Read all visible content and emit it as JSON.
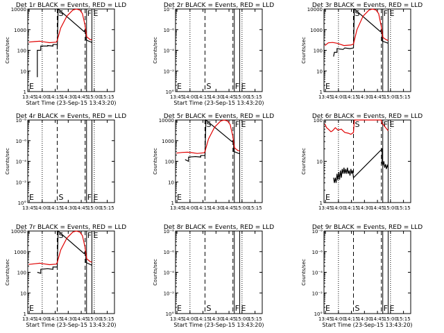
{
  "colors": {
    "events": "#000000",
    "lld": "#e00000",
    "axes": "#000000"
  },
  "chart_data": [
    {
      "type": "line",
      "title": "Det 1r BLACK = Events, RED = LLD",
      "xlabel": "Start Time (23-Sep-15 13:43:20)",
      "ylabel": "Counts/sec",
      "x_ticks": [
        "13:45",
        "14:00",
        "14:15",
        "14:30",
        "14:45",
        "15:00",
        "15:15"
      ],
      "y_ticks": [
        "1",
        "10",
        "100",
        "1000",
        "10000"
      ],
      "ylim": [
        1,
        10000
      ],
      "yscale": "log",
      "markers": [
        {
          "label": "E",
          "x_min": 0
        },
        {
          "label": "S",
          "x_min": 34
        },
        {
          "label": "F",
          "x_min": 67
        },
        {
          "label": "E",
          "x_min": 74
        }
      ],
      "series": [
        {
          "name": "BLACK",
          "color": "#000000",
          "points": [
            [
              11,
              5
            ],
            [
              11,
              100
            ],
            [
              15,
              100
            ],
            [
              15,
              160
            ],
            [
              23,
              160
            ],
            [
              23,
              170
            ],
            [
              29,
              160
            ],
            [
              29,
              190
            ],
            [
              34,
              190
            ],
            [
              34,
              110
            ],
            [
              35,
              10000
            ],
            [
              65,
              800
            ],
            [
              66,
              1000
            ],
            [
              67,
              600
            ],
            [
              67,
              320
            ],
            [
              74,
              240
            ],
            [
              74,
              230
            ]
          ]
        },
        {
          "name": "RED",
          "color": "#e00000",
          "points": [
            [
              1,
              250
            ],
            [
              8,
              265
            ],
            [
              14,
              275
            ],
            [
              18,
              260
            ],
            [
              25,
              235
            ],
            [
              33,
              250
            ],
            [
              34,
              300
            ],
            [
              38,
              1200
            ],
            [
              45,
              4500
            ],
            [
              52,
              9000
            ],
            [
              56,
              10000
            ],
            [
              60,
              9000
            ],
            [
              63,
              6000
            ],
            [
              66,
              1700
            ],
            [
              68,
              450
            ],
            [
              72,
              330
            ],
            [
              74,
              330
            ]
          ]
        }
      ]
    },
    {
      "type": "line",
      "title": "Det 2r BLACK = Events, RED = LLD",
      "xlabel": "Start Time (23-Sep-15 13:43:20)",
      "ylabel": "Counts/sec",
      "x_ticks": [
        "13:45",
        "14:00",
        "14:15",
        "14:30",
        "14:45",
        "15:00",
        "15:15"
      ],
      "y_ticks": [
        "10°",
        "10⁻²",
        "10⁻⁴",
        "10⁻⁶",
        "10⁻⁸"
      ],
      "ylim": [
        1,
        1e-08
      ],
      "yscale": "log",
      "markers": [
        {
          "label": "E",
          "x_min": 0
        },
        {
          "label": "S",
          "x_min": 34
        },
        {
          "label": "F",
          "x_min": 67
        },
        {
          "label": "E",
          "x_min": 74
        }
      ],
      "series": []
    },
    {
      "type": "line",
      "title": "Det 3r BLACK = Events, RED = LLD",
      "xlabel": "",
      "ylabel": "Counts/sec",
      "x_ticks": [
        "13:45",
        "14:00",
        "14:15",
        "14:30",
        "14:45",
        "15:00",
        "15:15"
      ],
      "y_ticks": [
        "1",
        "10",
        "100",
        "1000",
        "10000"
      ],
      "ylim": [
        1,
        10000
      ],
      "yscale": "log",
      "markers": [
        {
          "label": "E",
          "x_min": 0
        },
        {
          "label": "S",
          "x_min": 34
        },
        {
          "label": "F",
          "x_min": 67
        },
        {
          "label": "E",
          "x_min": 74
        }
      ],
      "series": [
        {
          "name": "BLACK",
          "color": "#000000",
          "points": [
            [
              11,
              50
            ],
            [
              12,
              80
            ],
            [
              15,
              80
            ],
            [
              15,
              120
            ],
            [
              22,
              110
            ],
            [
              24,
              130
            ],
            [
              30,
              120
            ],
            [
              34,
              130
            ],
            [
              35,
              10000
            ],
            [
              65,
              800
            ],
            [
              66,
              1000
            ],
            [
              67,
              600
            ],
            [
              67,
              280
            ],
            [
              74,
              220
            ]
          ]
        },
        {
          "name": "RED",
          "color": "#e00000",
          "points": [
            [
              1,
              170
            ],
            [
              5,
              230
            ],
            [
              10,
              240
            ],
            [
              15,
              220
            ],
            [
              23,
              170
            ],
            [
              31,
              180
            ],
            [
              34,
              200
            ],
            [
              38,
              1000
            ],
            [
              45,
              4500
            ],
            [
              52,
              9000
            ],
            [
              56,
              10000
            ],
            [
              60,
              9000
            ],
            [
              63,
              6000
            ],
            [
              66,
              1500
            ],
            [
              68,
              420
            ],
            [
              72,
              320
            ],
            [
              74,
              300
            ]
          ]
        }
      ]
    },
    {
      "type": "line",
      "title": "Det 4r BLACK = Events, RED = LLD",
      "xlabel": "",
      "ylabel": "Counts/sec",
      "x_ticks": [
        "13:45",
        "14:00",
        "14:15",
        "14:30",
        "14:45",
        "15:00",
        "15:15"
      ],
      "y_ticks": [
        "10°",
        "10⁻²",
        "10⁻⁴",
        "10⁻⁶",
        "10⁻⁸"
      ],
      "ylim": [
        1,
        1e-08
      ],
      "yscale": "log",
      "markers": [
        {
          "label": "E",
          "x_min": 0
        },
        {
          "label": "S",
          "x_min": 34
        },
        {
          "label": "F",
          "x_min": 67
        },
        {
          "label": "E",
          "x_min": 74
        }
      ],
      "series": []
    },
    {
      "type": "line",
      "title": "Det 5r BLACK = Events, RED = LLD",
      "xlabel": "",
      "ylabel": "Counts/sec",
      "x_ticks": [
        "13:45",
        "14:00",
        "14:15",
        "14:30",
        "14:45",
        "15:00",
        "15:15"
      ],
      "y_ticks": [
        "1",
        "10",
        "100",
        "1000",
        "10000"
      ],
      "ylim": [
        1,
        10000
      ],
      "yscale": "log",
      "markers": [
        {
          "label": "E",
          "x_min": 0
        },
        {
          "label": "S",
          "x_min": 34
        },
        {
          "label": "F",
          "x_min": 67
        },
        {
          "label": "E",
          "x_min": 74
        }
      ],
      "series": [
        {
          "name": "BLACK",
          "color": "#000000",
          "points": [
            [
              11,
              120
            ],
            [
              15,
              100
            ],
            [
              15,
              160
            ],
            [
              23,
              170
            ],
            [
              29,
              160
            ],
            [
              29,
              190
            ],
            [
              34,
              190
            ],
            [
              35,
              10000
            ],
            [
              65,
              900
            ],
            [
              66,
              1000
            ],
            [
              67,
              600
            ],
            [
              67,
              300
            ],
            [
              74,
              230
            ]
          ]
        },
        {
          "name": "RED",
          "color": "#e00000",
          "points": [
            [
              1,
              250
            ],
            [
              8,
              270
            ],
            [
              14,
              275
            ],
            [
              18,
              265
            ],
            [
              25,
              240
            ],
            [
              33,
              260
            ],
            [
              34,
              300
            ],
            [
              38,
              1200
            ],
            [
              45,
              4500
            ],
            [
              52,
              9000
            ],
            [
              56,
              10000
            ],
            [
              60,
              9000
            ],
            [
              63,
              6000
            ],
            [
              66,
              1700
            ],
            [
              68,
              450
            ],
            [
              72,
              330
            ],
            [
              74,
              320
            ]
          ]
        }
      ]
    },
    {
      "type": "line",
      "title": "Det 6r BLACK = Events, RED = LLD",
      "xlabel": "",
      "ylabel": "Counts/sec",
      "x_ticks": [
        "13:45",
        "14:00",
        "14:15",
        "14:30",
        "14:45",
        "15:00",
        "15:15"
      ],
      "y_ticks": [
        "1",
        "10",
        "100"
      ],
      "ylim": [
        1,
        100
      ],
      "yscale": "log",
      "markers": [
        {
          "label": "E",
          "x_min": 0
        },
        {
          "label": "S",
          "x_min": 34
        },
        {
          "label": "F",
          "x_min": 67
        },
        {
          "label": "E",
          "x_min": 74
        }
      ],
      "series": [
        {
          "name": "BLACK",
          "color": "#000000",
          "points": [
            [
              11,
              4
            ],
            [
              12,
              3
            ],
            [
              13,
              4
            ],
            [
              14,
              3
            ],
            [
              15,
              5
            ],
            [
              16,
              3.5
            ],
            [
              17,
              5.5
            ],
            [
              18,
              3.6
            ],
            [
              19,
              6
            ],
            [
              20,
              4
            ],
            [
              21,
              6.5
            ],
            [
              22,
              5
            ],
            [
              23,
              7
            ],
            [
              24,
              5
            ],
            [
              25,
              6.5
            ],
            [
              26,
              5
            ],
            [
              27,
              7
            ],
            [
              28,
              5
            ],
            [
              29,
              6
            ],
            [
              30,
              4.5
            ],
            [
              31,
              6.5
            ],
            [
              32,
              5
            ],
            [
              33,
              6
            ],
            [
              34,
              4
            ],
            [
              67,
              20
            ],
            [
              67,
              9
            ],
            [
              68,
              8
            ],
            [
              69,
              10
            ],
            [
              70,
              7
            ],
            [
              71,
              8.5
            ],
            [
              72,
              6.5
            ],
            [
              73,
              8
            ],
            [
              74,
              7
            ]
          ]
        },
        {
          "name": "RED",
          "color": "#e00000",
          "points": [
            [
              1,
              80
            ],
            [
              3,
              65
            ],
            [
              5,
              60
            ],
            [
              8,
              52
            ],
            [
              10,
              55
            ],
            [
              13,
              65
            ],
            [
              16,
              57
            ],
            [
              20,
              60
            ],
            [
              24,
              50
            ],
            [
              28,
              48
            ],
            [
              31,
              45
            ],
            [
              34,
              50
            ],
            [
              35,
              100
            ],
            [
              66,
              100
            ],
            [
              67,
              80
            ],
            [
              68,
              80
            ],
            [
              70,
              70
            ],
            [
              72,
              62
            ],
            [
              74,
              55
            ]
          ]
        }
      ]
    },
    {
      "type": "line",
      "title": "Det 7r BLACK = Events, RED = LLD",
      "xlabel": "Start Time (23-Sep-15 13:43:20)",
      "ylabel": "Counts/sec",
      "x_ticks": [
        "13:45",
        "14:00",
        "14:15",
        "14:30",
        "14:45",
        "15:00",
        "15:15"
      ],
      "y_ticks": [
        "1",
        "10",
        "100",
        "1000",
        "10000"
      ],
      "ylim": [
        1,
        10000
      ],
      "yscale": "log",
      "markers": [
        {
          "label": "E",
          "x_min": 0
        },
        {
          "label": "S",
          "x_min": 34
        },
        {
          "label": "F",
          "x_min": 67
        },
        {
          "label": "E",
          "x_min": 74
        }
      ],
      "series": [
        {
          "name": "BLACK",
          "color": "#000000",
          "points": [
            [
              11,
              100
            ],
            [
              15,
              90
            ],
            [
              15,
              140
            ],
            [
              23,
              150
            ],
            [
              29,
              140
            ],
            [
              29,
              180
            ],
            [
              34,
              180
            ],
            [
              35,
              10000
            ],
            [
              65,
              800
            ],
            [
              66,
              1000
            ],
            [
              67,
              600
            ],
            [
              67,
              300
            ],
            [
              74,
              220
            ]
          ]
        },
        {
          "name": "RED",
          "color": "#e00000",
          "points": [
            [
              1,
              240
            ],
            [
              8,
              260
            ],
            [
              14,
              275
            ],
            [
              18,
              260
            ],
            [
              25,
              235
            ],
            [
              33,
              250
            ],
            [
              34,
              300
            ],
            [
              38,
              1200
            ],
            [
              45,
              4500
            ],
            [
              52,
              9000
            ],
            [
              56,
              10000
            ],
            [
              60,
              9000
            ],
            [
              63,
              6000
            ],
            [
              66,
              1700
            ],
            [
              68,
              450
            ],
            [
              72,
              330
            ],
            [
              74,
              310
            ]
          ]
        }
      ]
    },
    {
      "type": "line",
      "title": "Det 8r BLACK = Events, RED = LLD",
      "xlabel": "Start Time (23-Sep-15 13:43:20)",
      "ylabel": "Counts/sec",
      "x_ticks": [
        "13:45",
        "14:00",
        "14:15",
        "14:30",
        "14:45",
        "15:00",
        "15:15"
      ],
      "y_ticks": [
        "10°",
        "10⁻²",
        "10⁻⁴",
        "10⁻⁶",
        "10⁻⁸"
      ],
      "ylim": [
        1,
        1e-08
      ],
      "yscale": "log",
      "markers": [
        {
          "label": "E",
          "x_min": 0
        },
        {
          "label": "S",
          "x_min": 34
        },
        {
          "label": "F",
          "x_min": 67
        },
        {
          "label": "E",
          "x_min": 74
        }
      ],
      "series": []
    },
    {
      "type": "line",
      "title": "Det 9r BLACK = Events, RED = LLD",
      "xlabel": "Start Time (23-Sep-15 13:43:20)",
      "ylabel": "Counts/sec",
      "x_ticks": [
        "13:45",
        "14:00",
        "14:15",
        "14:30",
        "14:45",
        "15:00",
        "15:15"
      ],
      "y_ticks": [
        "10°",
        "10⁻²",
        "10⁻⁴",
        "10⁻⁶",
        "10⁻⁸"
      ],
      "ylim": [
        1,
        1e-08
      ],
      "yscale": "log",
      "markers": [
        {
          "label": "E",
          "x_min": 0
        },
        {
          "label": "S",
          "x_min": 34
        },
        {
          "label": "F",
          "x_min": 67
        },
        {
          "label": "E",
          "x_min": 74
        }
      ],
      "series": []
    }
  ]
}
